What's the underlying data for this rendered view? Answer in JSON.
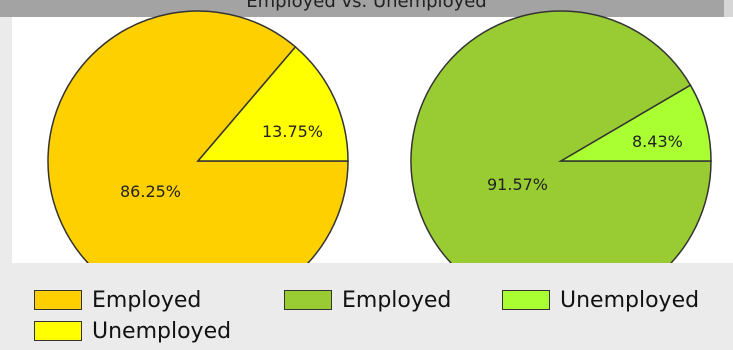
{
  "header": {
    "title": "Employed vs. Unemployed"
  },
  "chart_data": [
    {
      "type": "pie",
      "slices": [
        {
          "label": "Employed",
          "value": 86.25,
          "display": "86.25%",
          "color": "#ffd000"
        },
        {
          "label": "Unemployed",
          "value": 13.75,
          "display": "13.75%",
          "color": "#ffff00"
        }
      ]
    },
    {
      "type": "pie",
      "slices": [
        {
          "label": "Employed",
          "value": 91.57,
          "display": "91.57%",
          "color": "#99cc33"
        },
        {
          "label": "Unemployed",
          "value": 8.43,
          "display": "8.43%",
          "color": "#aaff33"
        }
      ]
    }
  ],
  "legend": [
    {
      "label": "Employed",
      "color": "#ffd000"
    },
    {
      "label": "Unemployed",
      "color": "#ffff00"
    },
    {
      "label": "Employed",
      "color": "#99cc33"
    },
    {
      "label": "Unemployed",
      "color": "#aaff33"
    }
  ]
}
